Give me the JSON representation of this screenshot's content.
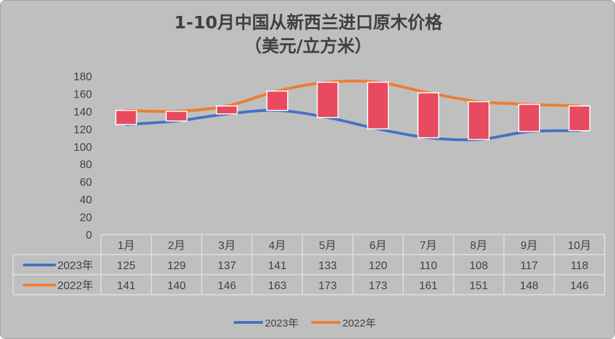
{
  "chart_data": {
    "type": "line",
    "title": "1-10月中国从新西兰进口原木价格",
    "subtitle": "（美元/立方米）",
    "categories": [
      "1月",
      "2月",
      "3月",
      "4月",
      "5月",
      "6月",
      "7月",
      "8月",
      "9月",
      "10月"
    ],
    "series": [
      {
        "name": "2023年",
        "color": "#4472C4",
        "values": [
          125,
          129,
          137,
          141,
          133,
          120,
          110,
          108,
          117,
          118
        ]
      },
      {
        "name": "2022年",
        "color": "#ED7D31",
        "values": [
          141,
          140,
          146,
          163,
          173,
          173,
          161,
          151,
          148,
          146
        ]
      }
    ],
    "updown_bars": {
      "color": "#E84A5F"
    },
    "ylim": [
      0,
      180
    ],
    "yticks": [
      0,
      20,
      40,
      60,
      80,
      100,
      120,
      140,
      160,
      180
    ],
    "data_table": true,
    "legend": "bottom",
    "grid": false
  }
}
